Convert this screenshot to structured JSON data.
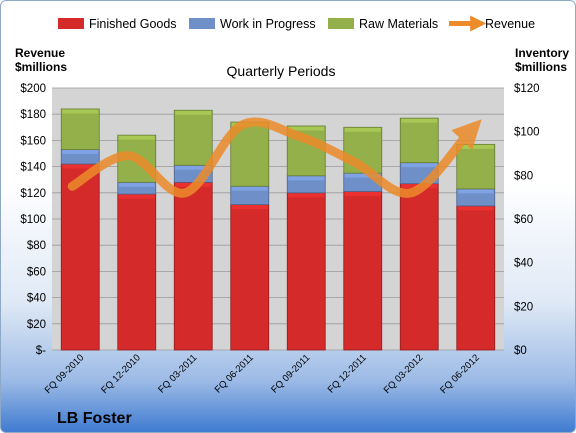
{
  "chart_data": {
    "type": "bar",
    "stacked": true,
    "title": "Quarterly Periods",
    "left_axis_title": [
      "Revenue",
      "$millions"
    ],
    "right_axis_title": [
      "Inventory",
      "$millions"
    ],
    "left_axis": {
      "min": 0,
      "max": 200,
      "step": 20,
      "ticks": [
        "$-",
        "$20",
        "$40",
        "$60",
        "$80",
        "$100",
        "$120",
        "$140",
        "$160",
        "$180",
        "$200"
      ]
    },
    "right_axis": {
      "min": 0,
      "max": 120,
      "step": 20,
      "ticks": [
        "$0",
        "$20",
        "$40",
        "$60",
        "$80",
        "$100",
        "$120"
      ]
    },
    "categories": [
      "FQ 09-2010",
      "FQ 12-2010",
      "FQ 03-2011",
      "FQ 06-2011",
      "FQ 09-2011",
      "FQ 12-2011",
      "FQ 03-2012",
      "FQ 06-2012"
    ],
    "series": [
      {
        "name": "Finished Goods",
        "axis": "left",
        "color": "#d42a2a",
        "values": [
          142,
          119,
          128,
          111,
          120,
          121,
          127,
          110
        ]
      },
      {
        "name": "Work in Progress",
        "axis": "left",
        "color": "#6f8fc8",
        "values": [
          11,
          9,
          13,
          14,
          13,
          14,
          16,
          13
        ]
      },
      {
        "name": "Raw Materials",
        "axis": "left",
        "color": "#93b04a",
        "values": [
          31,
          36,
          42,
          49,
          38,
          35,
          34,
          34
        ]
      },
      {
        "name": "Revenue",
        "type": "line",
        "axis": "right",
        "color": "#ec8b2a",
        "values": [
          75,
          89,
          72,
          103,
          98,
          86,
          72,
          99
        ]
      }
    ],
    "legend_position": "top",
    "grid": true,
    "watermark": "LB Foster"
  }
}
